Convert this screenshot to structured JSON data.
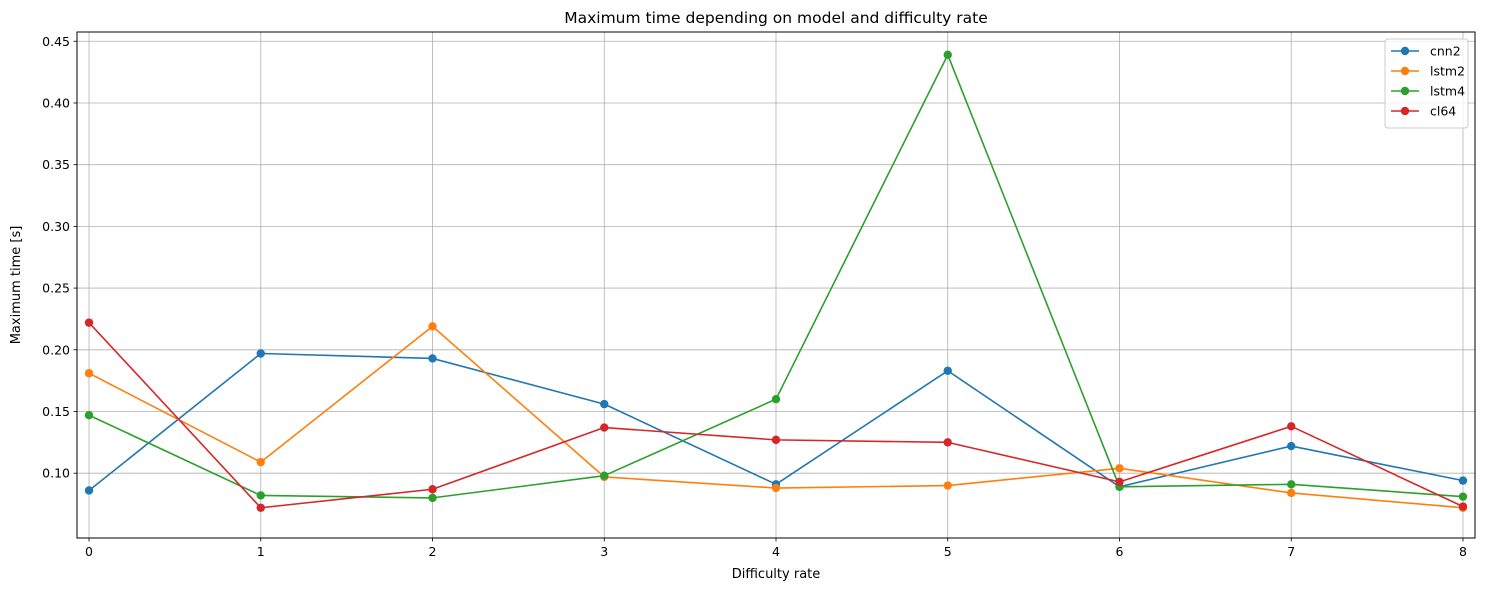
{
  "chart_data": {
    "type": "line",
    "title": "Maximum time depending on model and difficulty rate",
    "xlabel": "Difficulty rate",
    "ylabel": "Maximum time [s]",
    "x": [
      0,
      1,
      2,
      3,
      4,
      5,
      6,
      7,
      8
    ],
    "xlim": [
      -0.07,
      8.07
    ],
    "ylim": [
      0.0475,
      0.4575
    ],
    "x_ticks": [
      0,
      1,
      2,
      3,
      4,
      5,
      6,
      7,
      8
    ],
    "x_tick_labels": [
      "0",
      "1",
      "2",
      "3",
      "4",
      "5",
      "6",
      "7",
      "8"
    ],
    "y_ticks": [
      0.1,
      0.15,
      0.2,
      0.25,
      0.3,
      0.35,
      0.4,
      0.45
    ],
    "y_tick_labels": [
      "0.10",
      "0.15",
      "0.20",
      "0.25",
      "0.30",
      "0.35",
      "0.40",
      "0.45"
    ],
    "grid": true,
    "legend_position": "top-right",
    "marker": "circle",
    "series": [
      {
        "name": "cnn2",
        "color": "#1f77b4",
        "values": [
          0.086,
          0.197,
          0.193,
          0.156,
          0.091,
          0.183,
          0.089,
          0.122,
          0.094
        ]
      },
      {
        "name": "lstm2",
        "color": "#ff7f0e",
        "values": [
          0.181,
          0.109,
          0.219,
          0.097,
          0.088,
          0.09,
          0.104,
          0.084,
          0.072
        ]
      },
      {
        "name": "lstm4",
        "color": "#2ca02c",
        "values": [
          0.147,
          0.082,
          0.08,
          0.098,
          0.16,
          0.439,
          0.089,
          0.091,
          0.081
        ]
      },
      {
        "name": "cl64",
        "color": "#d62728",
        "values": [
          0.222,
          0.072,
          0.087,
          0.137,
          0.127,
          0.125,
          0.093,
          0.138,
          0.073
        ]
      }
    ]
  }
}
